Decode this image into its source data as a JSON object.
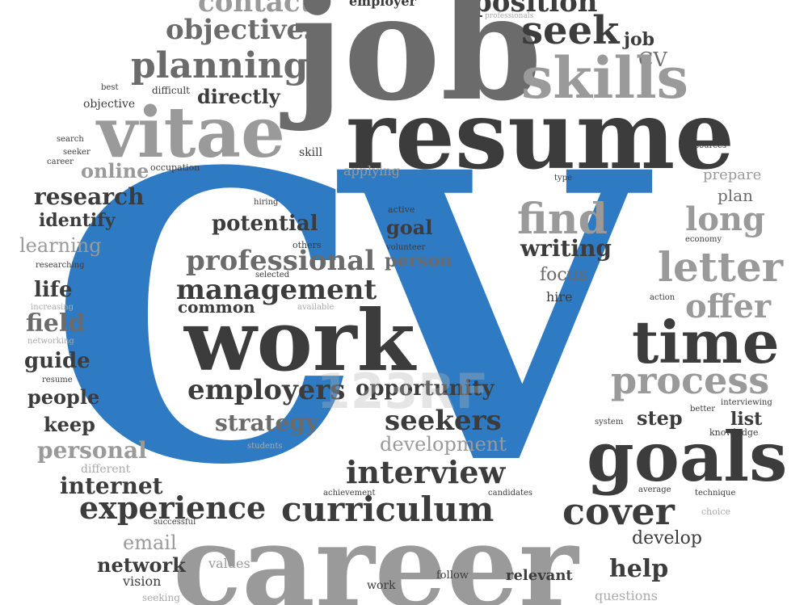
{
  "cloud": {
    "title": "CV",
    "words": {
      "contact": "contact",
      "employer": "employer",
      "position": "position",
      "objectives": "objectives",
      "job_big": "job",
      "seek": "seek",
      "job_small": "job",
      "professionals": "professionals",
      "cv_small": "CV",
      "planning": "planning",
      "skills": "skills",
      "best": "best",
      "difficult": "difficult",
      "directly": "directly",
      "objective": "objective",
      "vitae": "vitae",
      "resume": "resume",
      "search": "search",
      "seeker": "seeker",
      "skill": "skill",
      "sources": "sources",
      "career_small": "career",
      "online": "online",
      "occupation": "occupation",
      "applying": "applying",
      "type": "type",
      "prepare": "prepare",
      "plan": "plan",
      "research": "research",
      "hiring": "hiring",
      "active": "active",
      "identify": "identify",
      "find": "find",
      "long": "long",
      "potential": "potential",
      "goal": "goal",
      "learning": "learning",
      "others": "others",
      "economy": "economy",
      "volunteer": "volunteer",
      "writing": "writing",
      "professional": "professional",
      "person": "person",
      "letter": "letter",
      "researching": "researching",
      "selected": "selected",
      "focus": "focus",
      "life": "life",
      "management": "management",
      "hire": "hire",
      "action": "action",
      "offer": "offer",
      "increasing": "increasing",
      "common": "common",
      "available": "available",
      "field": "field",
      "work_big": "work",
      "time": "time",
      "networking": "networking",
      "guide": "guide",
      "process": "process",
      "resume_small": "resume",
      "employers": "employers",
      "opportunity": "opportunity",
      "people": "people",
      "better": "better",
      "interviewing": "interviewing",
      "keep": "keep",
      "strategy": "strategy",
      "seekers": "seekers",
      "step": "step",
      "list": "list",
      "system": "system",
      "knowledge": "knowledge",
      "personal": "personal",
      "students": "students",
      "development": "development",
      "different": "different",
      "goals": "goals",
      "interview": "interview",
      "internet": "internet",
      "achievement": "achievement",
      "candidates": "candidates",
      "average": "average",
      "technique": "technique",
      "experience": "experience",
      "curriculum": "curriculum",
      "cover": "cover",
      "choice": "choice",
      "successful": "successful",
      "email": "email",
      "develop": "develop",
      "career_big": "career",
      "network": "network",
      "values": "values",
      "help": "help",
      "vision": "vision",
      "follow": "follow",
      "relevant": "relevant",
      "work_small": "work",
      "seeking": "seeking",
      "questions": "questions"
    },
    "watermark": "123RF"
  }
}
